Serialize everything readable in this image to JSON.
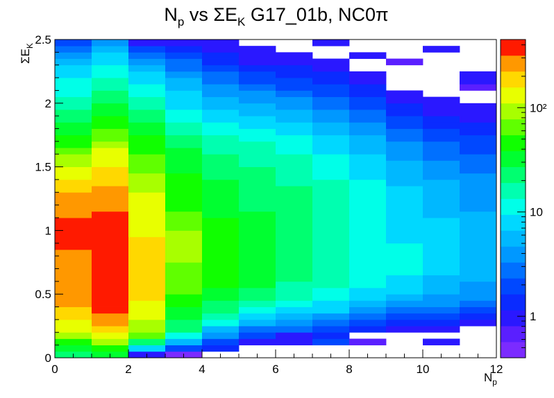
{
  "chart_data": {
    "type": "heatmap",
    "title": "N_p vs ΣE_K G17_01b, NC0π",
    "title_parts": {
      "main": "N",
      "sub1": "p",
      "mid": " vs ΣE",
      "sub2": "K",
      "tail": " G17_01b, NC0π"
    },
    "xlabel": "N_p",
    "xlabel_parts": {
      "main": "N",
      "sub": "p"
    },
    "ylabel": "ΣE_K",
    "ylabel_parts": {
      "main": "ΣE",
      "sub": "K"
    },
    "xlim": [
      0,
      12
    ],
    "ylim": [
      0,
      2.5
    ],
    "x_ticks": [
      "0",
      "2",
      "4",
      "6",
      "8",
      "10",
      "12"
    ],
    "y_ticks": [
      "0",
      "0.5",
      "1",
      "1.5",
      "2",
      "2.5"
    ],
    "colorbar": {
      "scale": "log",
      "range": [
        0.4,
        450
      ],
      "ticks": [
        "1",
        "10",
        "10²"
      ]
    },
    "x_bin_edges": [
      0,
      1,
      2,
      3,
      4,
      5,
      6,
      7,
      8,
      9,
      10,
      11,
      12
    ],
    "y_bin_width": 0.05,
    "y_bins": 50,
    "color_index_note": "values are colour levels 0 (≈0.4) to 19 (≈450) on the log palette; -1 = empty",
    "columns": [
      [
        11,
        12,
        13,
        15,
        16,
        16,
        17,
        17,
        18,
        18,
        18,
        18,
        18,
        18,
        18,
        18,
        18,
        19,
        19,
        19,
        19,
        19,
        18,
        18,
        18,
        18,
        17,
        17,
        16,
        16,
        15,
        15,
        14,
        13,
        13,
        12,
        12,
        11,
        11,
        10,
        10,
        9,
        9,
        9,
        8,
        8,
        7,
        6,
        5,
        4
      ],
      [
        12,
        13,
        15,
        16,
        17,
        18,
        18,
        19,
        19,
        19,
        19,
        19,
        19,
        19,
        19,
        19,
        19,
        19,
        19,
        19,
        19,
        19,
        19,
        18,
        18,
        18,
        18,
        17,
        17,
        17,
        16,
        16,
        16,
        15,
        14,
        14,
        13,
        13,
        12,
        12,
        11,
        11,
        10,
        10,
        9,
        9,
        8,
        8,
        7,
        6
      ],
      [
        2,
        8,
        11,
        14,
        15,
        15,
        16,
        16,
        16,
        17,
        17,
        17,
        17,
        17,
        17,
        17,
        17,
        17,
        17,
        16,
        16,
        16,
        16,
        16,
        16,
        16,
        15,
        15,
        15,
        14,
        14,
        14,
        13,
        13,
        13,
        12,
        12,
        11,
        11,
        10,
        10,
        9,
        9,
        8,
        8,
        7,
        6,
        5,
        4,
        2
      ],
      [
        0,
        4,
        7,
        9,
        11,
        11,
        12,
        12,
        13,
        13,
        14,
        14,
        14,
        14,
        14,
        15,
        15,
        15,
        15,
        15,
        14,
        14,
        14,
        13,
        13,
        13,
        13,
        13,
        13,
        12,
        12,
        12,
        12,
        11,
        11,
        10,
        10,
        9,
        9,
        8,
        8,
        8,
        7,
        7,
        6,
        5,
        5,
        4,
        3,
        2
      ],
      [
        -1,
        3,
        4,
        6,
        7,
        9,
        10,
        11,
        11,
        12,
        12,
        13,
        13,
        13,
        13,
        13,
        13,
        13,
        13,
        13,
        13,
        13,
        12,
        12,
        12,
        12,
        12,
        12,
        11,
        11,
        11,
        11,
        10,
        10,
        10,
        9,
        9,
        8,
        8,
        7,
        7,
        6,
        6,
        5,
        5,
        4,
        3,
        3,
        2,
        2
      ],
      [
        -1,
        -1,
        2,
        4,
        5,
        7,
        8,
        9,
        10,
        11,
        11,
        12,
        12,
        12,
        12,
        12,
        12,
        12,
        12,
        12,
        12,
        12,
        12,
        11,
        11,
        11,
        11,
        11,
        11,
        11,
        10,
        10,
        10,
        10,
        9,
        9,
        8,
        8,
        7,
        7,
        6,
        6,
        5,
        4,
        4,
        3,
        2,
        2,
        2,
        -1
      ],
      [
        -1,
        -1,
        2,
        2,
        5,
        6,
        7,
        8,
        9,
        10,
        10,
        10,
        11,
        11,
        11,
        11,
        11,
        11,
        11,
        11,
        11,
        11,
        11,
        11,
        11,
        11,
        11,
        10,
        10,
        10,
        10,
        10,
        9,
        9,
        9,
        8,
        8,
        7,
        7,
        6,
        6,
        5,
        4,
        4,
        3,
        3,
        2,
        2,
        -1,
        -1
      ],
      [
        -1,
        -1,
        4,
        3,
        4,
        5,
        6,
        8,
        8,
        9,
        9,
        10,
        10,
        10,
        10,
        10,
        10,
        10,
        10,
        10,
        10,
        10,
        10,
        10,
        10,
        10,
        10,
        10,
        9,
        9,
        9,
        9,
        8,
        8,
        8,
        7,
        7,
        6,
        6,
        5,
        5,
        4,
        4,
        3,
        3,
        2,
        2,
        -1,
        -1,
        2
      ],
      [
        -1,
        -1,
        1,
        -1,
        3,
        4,
        5,
        6,
        7,
        8,
        8,
        9,
        9,
        9,
        9,
        9,
        9,
        9,
        9,
        9,
        9,
        9,
        9,
        9,
        9,
        9,
        9,
        9,
        8,
        8,
        8,
        8,
        7,
        7,
        7,
        6,
        6,
        5,
        5,
        4,
        4,
        3,
        3,
        2,
        2,
        -1,
        -1,
        2,
        -1,
        -1
      ],
      [
        -1,
        -1,
        -1,
        -1,
        2,
        3,
        4,
        5,
        6,
        7,
        8,
        8,
        8,
        9,
        9,
        9,
        9,
        9,
        8,
        8,
        8,
        8,
        8,
        8,
        8,
        8,
        8,
        7,
        7,
        7,
        7,
        6,
        6,
        6,
        5,
        5,
        4,
        4,
        3,
        3,
        2,
        2,
        -1,
        -1,
        -1,
        -1,
        1,
        -1,
        -1,
        -1
      ],
      [
        -1,
        -1,
        2,
        -1,
        2,
        3,
        4,
        5,
        6,
        6,
        7,
        7,
        7,
        8,
        8,
        8,
        8,
        8,
        8,
        8,
        8,
        8,
        7,
        7,
        7,
        7,
        7,
        7,
        6,
        6,
        6,
        5,
        5,
        5,
        4,
        4,
        3,
        3,
        2,
        2,
        2,
        -1,
        -1,
        -1,
        -1,
        -1,
        -1,
        -1,
        2,
        -1
      ],
      [
        -1,
        -1,
        -1,
        -1,
        -1,
        2,
        3,
        4,
        5,
        6,
        6,
        6,
        7,
        7,
        7,
        7,
        7,
        7,
        7,
        7,
        7,
        7,
        7,
        6,
        6,
        6,
        6,
        6,
        6,
        5,
        5,
        5,
        4,
        4,
        4,
        3,
        3,
        2,
        2,
        2,
        -1,
        -1,
        1,
        2,
        2,
        -1,
        -1,
        -1,
        -1,
        -1
      ]
    ]
  }
}
